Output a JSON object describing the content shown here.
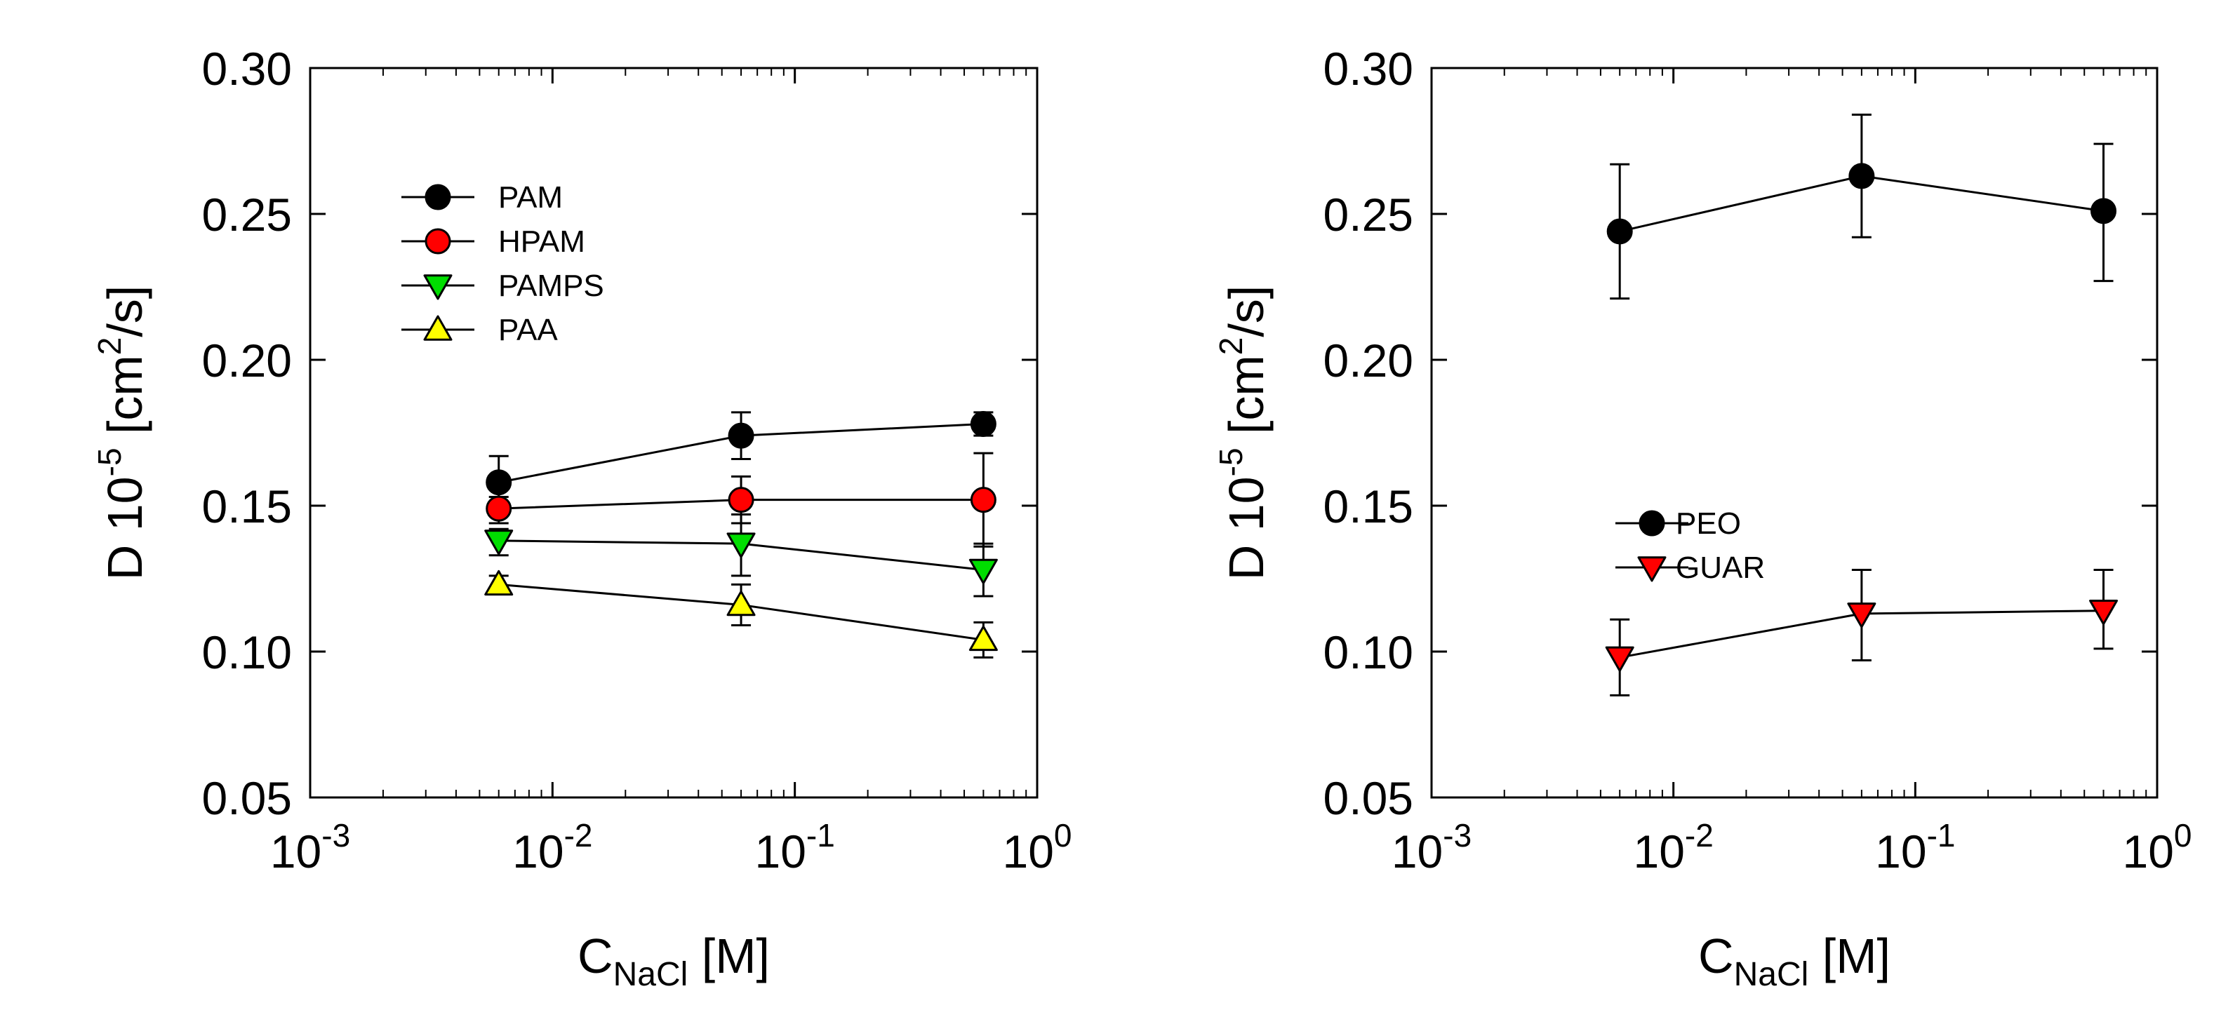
{
  "chart_data": [
    {
      "type": "scatter",
      "panel": "left",
      "xscale": "log",
      "xlim": [
        0.001,
        1
      ],
      "ylim": [
        0.05,
        0.3
      ],
      "xlabel": {
        "main": "C",
        "sub": "NaCl",
        "unit": " [M]"
      },
      "ylabel": {
        "pre": "D 10",
        "exp": "-5",
        "mid": " [cm",
        "exp2": "2",
        "post": "/s]"
      },
      "xticks": [
        {
          "value": 0.001,
          "base": "10",
          "exp": "-3"
        },
        {
          "value": 0.01,
          "base": "10",
          "exp": "-2"
        },
        {
          "value": 0.1,
          "base": "10",
          "exp": "-1"
        },
        {
          "value": 1,
          "base": "10",
          "exp": "0"
        }
      ],
      "yticks": [
        {
          "value": 0.05,
          "label": "0.05"
        },
        {
          "value": 0.1,
          "label": "0.10"
        },
        {
          "value": 0.15,
          "label": "0.15"
        },
        {
          "value": 0.2,
          "label": "0.20"
        },
        {
          "value": 0.25,
          "label": "0.25"
        },
        {
          "value": 0.3,
          "label": "0.30"
        }
      ],
      "legend_position": "top-left",
      "series": [
        {
          "name": "PAM",
          "marker": "circle",
          "color": "#000000",
          "x": [
            0.006,
            0.06,
            0.6
          ],
          "y": [
            0.158,
            0.174,
            0.178
          ],
          "err": [
            [
              0.153,
              0.167
            ],
            [
              0.166,
              0.182
            ],
            [
              0.174,
              0.182
            ]
          ]
        },
        {
          "name": "HPAM",
          "marker": "circle",
          "color": "#ff0000",
          "x": [
            0.006,
            0.06,
            0.6
          ],
          "y": [
            0.149,
            0.152,
            0.152
          ],
          "err": [
            [
              0.144,
              0.156
            ],
            [
              0.144,
              0.16
            ],
            [
              0.136,
              0.168
            ]
          ]
        },
        {
          "name": "PAMPS",
          "marker": "triangle-down",
          "color": "#00dd00",
          "x": [
            0.006,
            0.06,
            0.6
          ],
          "y": [
            0.138,
            0.137,
            0.128
          ],
          "err": [
            [
              0.133,
              0.142
            ],
            [
              0.126,
              0.147
            ],
            [
              0.119,
              0.137
            ]
          ]
        },
        {
          "name": "PAA",
          "marker": "triangle-up",
          "color": "#ffff00",
          "x": [
            0.006,
            0.06,
            0.6
          ],
          "y": [
            0.123,
            0.116,
            0.104
          ],
          "err": [
            [
              0.12,
              0.126
            ],
            [
              0.109,
              0.123
            ],
            [
              0.098,
              0.11
            ]
          ]
        }
      ]
    },
    {
      "type": "scatter",
      "panel": "right",
      "xscale": "log",
      "xlim": [
        0.001,
        1
      ],
      "ylim": [
        0.05,
        0.3
      ],
      "xlabel": {
        "main": "C",
        "sub": "NaCl",
        "unit": " [M]"
      },
      "ylabel": {
        "pre": "D 10",
        "exp": "-5",
        "mid": " [cm",
        "exp2": "2",
        "post": "/s]"
      },
      "xticks": [
        {
          "value": 0.001,
          "base": "10",
          "exp": "-3"
        },
        {
          "value": 0.01,
          "base": "10",
          "exp": "-2"
        },
        {
          "value": 0.1,
          "base": "10",
          "exp": "-1"
        },
        {
          "value": 1,
          "base": "10",
          "exp": "0"
        }
      ],
      "yticks": [
        {
          "value": 0.05,
          "label": "0.05"
        },
        {
          "value": 0.1,
          "label": "0.10"
        },
        {
          "value": 0.15,
          "label": "0.15"
        },
        {
          "value": 0.2,
          "label": "0.20"
        },
        {
          "value": 0.25,
          "label": "0.25"
        },
        {
          "value": 0.3,
          "label": "0.30"
        }
      ],
      "legend_position": "center-left",
      "series": [
        {
          "name": "PEO",
          "marker": "circle",
          "color": "#000000",
          "x": [
            0.006,
            0.06,
            0.6
          ],
          "y": [
            0.244,
            0.263,
            0.251
          ],
          "err": [
            [
              0.221,
              0.267
            ],
            [
              0.242,
              0.284
            ],
            [
              0.227,
              0.274
            ]
          ]
        },
        {
          "name": "GUAR",
          "marker": "triangle-down",
          "color": "#ff0000",
          "x": [
            0.006,
            0.06,
            0.6
          ],
          "y": [
            0.098,
            0.113,
            0.114
          ],
          "err": [
            [
              0.085,
              0.111
            ],
            [
              0.097,
              0.128
            ],
            [
              0.101,
              0.128
            ]
          ]
        }
      ]
    }
  ]
}
